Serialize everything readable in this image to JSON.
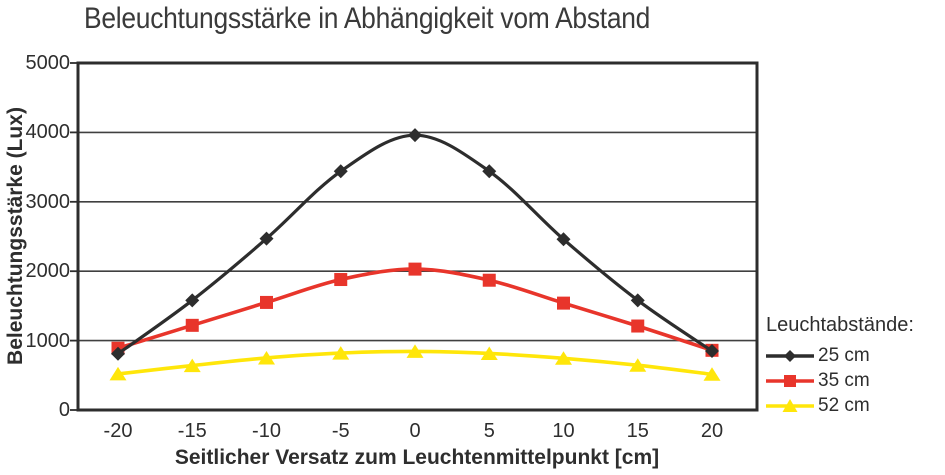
{
  "chart_data": {
    "type": "line",
    "title": "Beleuchtungsstärke in Abhängigkeit vom Abstand",
    "xlabel": "Seitlicher Versatz zum Leuchtenmittelpunkt [cm]",
    "ylabel": "Beleuchtungsstärke (Lux)",
    "x": [
      -20,
      -15,
      -10,
      -5,
      0,
      5,
      10,
      15,
      20
    ],
    "x_tick_labels": [
      "-20",
      "-15",
      "-10",
      "-5",
      "0",
      "5",
      "10",
      "15",
      "20"
    ],
    "y_ticks": [
      0,
      1000,
      2000,
      3000,
      4000,
      5000
    ],
    "ylim": [
      0,
      5000
    ],
    "xlim": [
      -22.7,
      22.9
    ],
    "grid": "horizontal",
    "smoothed_lines": true,
    "legend_title": "Leuchtabstände:",
    "legend_position": "right-bottom",
    "series": [
      {
        "name": "25 cm",
        "marker": "diamond",
        "color": "#2d2d2d",
        "values": [
          810,
          1580,
          2470,
          3440,
          3960,
          3440,
          2460,
          1580,
          850
        ]
      },
      {
        "name": "35 cm",
        "marker": "square",
        "color": "#e8352b",
        "values": [
          890,
          1220,
          1550,
          1880,
          2030,
          1870,
          1540,
          1210,
          860
        ]
      },
      {
        "name": "52 cm",
        "marker": "triangle",
        "color": "#ffe60a",
        "values": [
          520,
          640,
          750,
          820,
          845,
          815,
          745,
          645,
          515
        ]
      }
    ]
  },
  "colors": {
    "background": "#ffffff",
    "plot_border": "#2d2d2d",
    "gridline": "#404040",
    "text": "#2e2e2e",
    "title_text": "#3a3a3a",
    "series_25cm": "#2d2d2d",
    "series_35cm": "#e8352b",
    "series_52cm": "#ffe60a"
  }
}
